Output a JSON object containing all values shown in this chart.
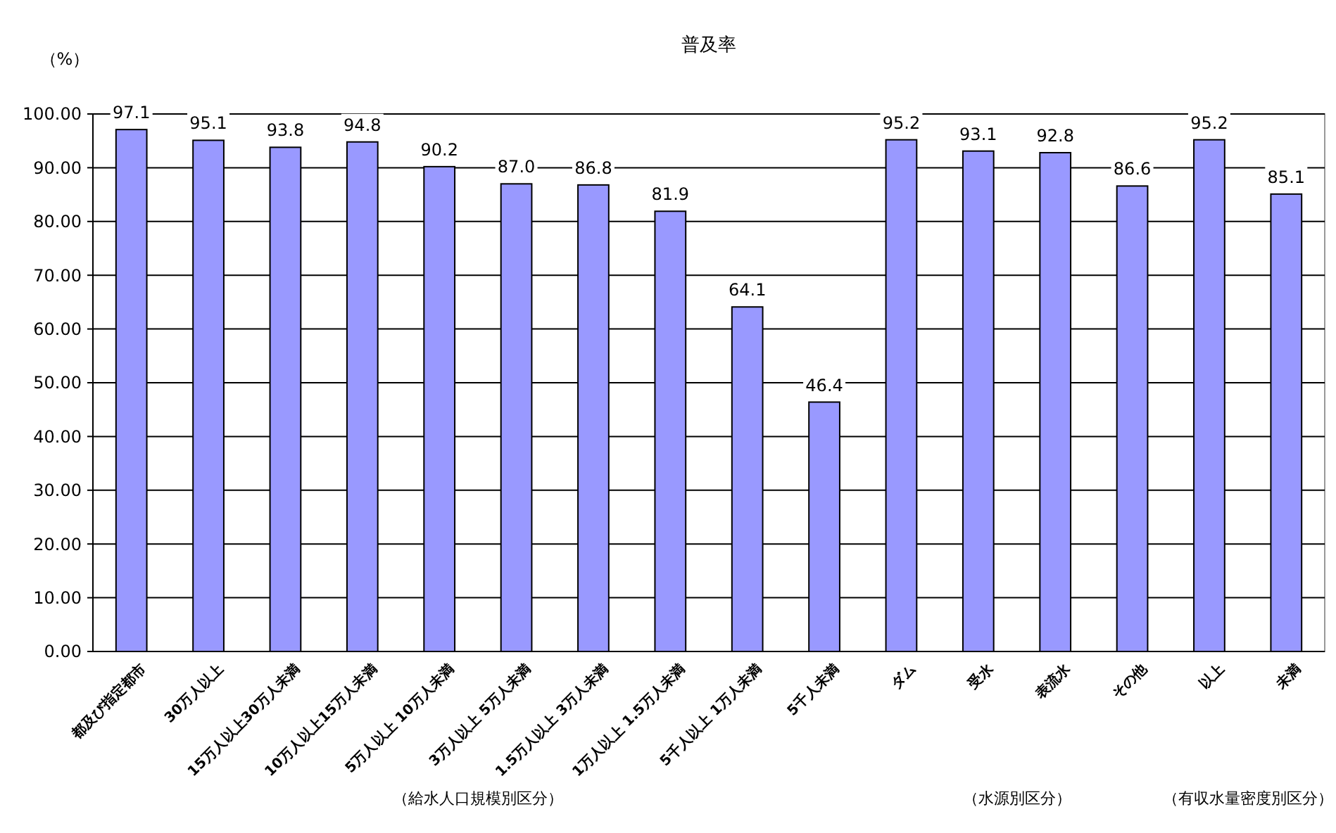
{
  "chart_data": {
    "type": "bar",
    "title": "普及率",
    "ylabel": "（%）",
    "categories": [
      "都及び指定都市",
      "30万人以上",
      "15万人以上30万人未満",
      "10万人以上15万人未満",
      "5万人以上 10万人未満",
      "3万人以上 5万人未満",
      "1.5万人以上 3万人未満",
      "1万人以上 1.5万人未満",
      "5千人以上 1万人未満",
      "5千人未満",
      "ダム",
      "受水",
      "表流水",
      "その他",
      "以上",
      "未満"
    ],
    "values": [
      97.1,
      95.1,
      93.8,
      94.8,
      90.2,
      87.0,
      86.8,
      81.9,
      64.1,
      46.4,
      95.2,
      93.1,
      92.8,
      86.6,
      95.2,
      85.1
    ],
    "value_labels": [
      "97.1",
      "95.1",
      "93.8",
      "94.8",
      "90.2",
      "87.0",
      "86.8",
      "81.9",
      "64.1",
      "46.4",
      "95.2",
      "93.1",
      "92.8",
      "86.6",
      "95.2",
      "85.1"
    ],
    "color": "#9999ff",
    "ylim": [
      0,
      100
    ],
    "yticks": [
      {
        "value": 0,
        "label": "0.00"
      },
      {
        "value": 10,
        "label": "10.00"
      },
      {
        "value": 20,
        "label": "20.00"
      },
      {
        "value": 30,
        "label": "30.00"
      },
      {
        "value": 40,
        "label": "40.00"
      },
      {
        "value": 50,
        "label": "50.00"
      },
      {
        "value": 60,
        "label": "60.00"
      },
      {
        "value": 70,
        "label": "70.00"
      },
      {
        "value": 80,
        "label": "80.00"
      },
      {
        "value": 90,
        "label": "90.00"
      },
      {
        "value": 100,
        "label": "100.00"
      }
    ],
    "grid": "y",
    "annotations": [
      "（給水人口規模別区分）",
      "（水源別区分）",
      "（有収水量密度別区分）"
    ]
  }
}
